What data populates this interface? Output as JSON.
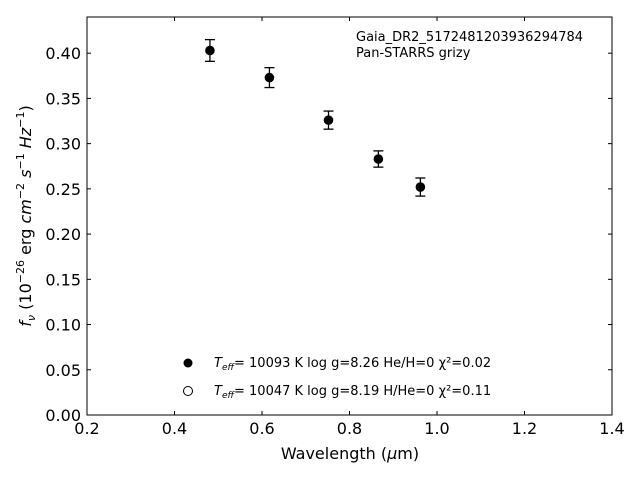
{
  "chart_data": {
    "type": "scatter",
    "annotation": [
      "Gaia_DR2_5172481203936294784",
      "Pan-STARRS grizy"
    ],
    "xlabel": "Wavelength (μm)",
    "ylabel": "fν (10⁻²⁶ erg cm⁻² s⁻¹ Hz⁻¹)",
    "xlim": [
      0.2,
      1.4
    ],
    "ylim": [
      0.0,
      0.44
    ],
    "xticks": [
      "0.2",
      "0.4",
      "0.6",
      "0.8",
      "1.0",
      "1.2",
      "1.4"
    ],
    "yticks": [
      "0.00",
      "0.05",
      "0.10",
      "0.15",
      "0.20",
      "0.25",
      "0.30",
      "0.35",
      "0.40"
    ],
    "grid": false,
    "legend_position": "bottom-center",
    "series": [
      {
        "marker": "filled-circle",
        "x": [
          0.481,
          0.617,
          0.752,
          0.866,
          0.962
        ],
        "y": [
          0.403,
          0.373,
          0.326,
          0.283,
          0.252
        ],
        "yerr": [
          0.012,
          0.011,
          0.01,
          0.009,
          0.01
        ]
      }
    ],
    "legend": [
      {
        "marker": "filled-circle",
        "teff_label": "T",
        "teff_sub": "eff",
        "text": "= 10093 K  log g=8.26  He/H=0  χ²=0.02"
      },
      {
        "marker": "open-circle",
        "teff_label": "T",
        "teff_sub": "eff",
        "text": "= 10047 K  log g=8.19  H/He=0  χ²=0.11"
      }
    ],
    "colors": {
      "marker": "#000000",
      "axes": "#000000",
      "background": "#ffffff"
    }
  }
}
